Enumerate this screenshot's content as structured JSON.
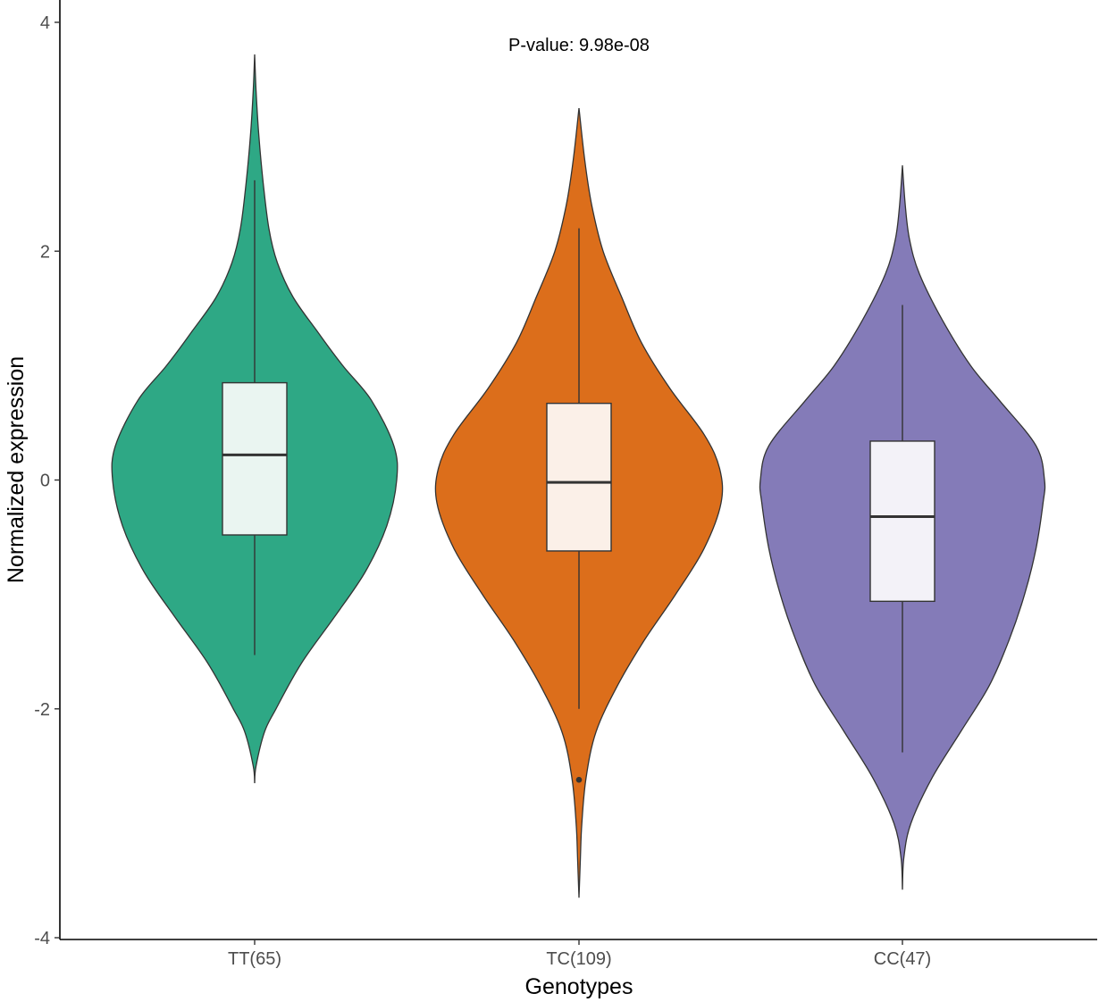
{
  "chart_data": {
    "type": "violin",
    "xlabel": "Genotypes",
    "ylabel": "Normalized expression",
    "annotation": "P-value: 9.98e-08",
    "ylim": [
      -4.05,
      4.2
    ],
    "yticks": [
      -4,
      -2,
      0,
      2,
      4
    ],
    "yticklabels": [
      "-4",
      "-2",
      "0",
      "2",
      "4"
    ],
    "grid": false,
    "legend": "none",
    "categories": [
      "TT(65)",
      "TC(109)",
      "CC(47)"
    ],
    "series": [
      {
        "category": "TT(65)",
        "color": "#2EA885",
        "box_fill": "#EAF5F1",
        "box": {
          "q1": -0.48,
          "median": 0.22,
          "q3": 0.85,
          "whisker_low": -1.53,
          "whisker_high": 2.62
        },
        "outliers": [],
        "violin_range": [
          -2.65,
          3.72
        ],
        "density": [
          [
            -2.65,
            0.0
          ],
          [
            -2.5,
            0.01
          ],
          [
            -2.2,
            0.07
          ],
          [
            -2.0,
            0.15
          ],
          [
            -1.6,
            0.33
          ],
          [
            -1.2,
            0.56
          ],
          [
            -0.8,
            0.78
          ],
          [
            -0.4,
            0.93
          ],
          [
            0.0,
            1.0
          ],
          [
            0.3,
            0.98
          ],
          [
            0.7,
            0.82
          ],
          [
            1.0,
            0.62
          ],
          [
            1.3,
            0.44
          ],
          [
            1.6,
            0.27
          ],
          [
            1.9,
            0.16
          ],
          [
            2.2,
            0.1
          ],
          [
            2.6,
            0.06
          ],
          [
            3.0,
            0.03
          ],
          [
            3.4,
            0.01
          ],
          [
            3.72,
            0.0
          ]
        ]
      },
      {
        "category": "TC(109)",
        "color": "#DC6E1B",
        "box_fill": "#FBF0E8",
        "box": {
          "q1": -0.62,
          "median": -0.02,
          "q3": 0.67,
          "whisker_low": -2.0,
          "whisker_high": 2.2
        },
        "outliers": [
          -2.62
        ],
        "violin_range": [
          -3.65,
          3.25
        ],
        "density": [
          [
            -3.65,
            0.0
          ],
          [
            -3.3,
            0.01
          ],
          [
            -3.0,
            0.02
          ],
          [
            -2.6,
            0.05
          ],
          [
            -2.2,
            0.12
          ],
          [
            -1.8,
            0.27
          ],
          [
            -1.4,
            0.46
          ],
          [
            -1.0,
            0.68
          ],
          [
            -0.6,
            0.88
          ],
          [
            -0.2,
            1.0
          ],
          [
            0.1,
            0.99
          ],
          [
            0.4,
            0.88
          ],
          [
            0.8,
            0.64
          ],
          [
            1.2,
            0.44
          ],
          [
            1.6,
            0.3
          ],
          [
            2.0,
            0.17
          ],
          [
            2.4,
            0.09
          ],
          [
            2.8,
            0.04
          ],
          [
            3.25,
            0.0
          ]
        ]
      },
      {
        "category": "CC(47)",
        "color": "#847BB8",
        "box_fill": "#F3F2F8",
        "box": {
          "q1": -1.06,
          "median": -0.32,
          "q3": 0.34,
          "whisker_low": -2.38,
          "whisker_high": 1.53
        },
        "outliers": [],
        "violin_range": [
          -3.58,
          2.75
        ],
        "density": [
          [
            -3.58,
            0.0
          ],
          [
            -3.3,
            0.01
          ],
          [
            -3.0,
            0.06
          ],
          [
            -2.6,
            0.21
          ],
          [
            -2.2,
            0.41
          ],
          [
            -1.8,
            0.61
          ],
          [
            -1.4,
            0.75
          ],
          [
            -1.0,
            0.86
          ],
          [
            -0.6,
            0.94
          ],
          [
            -0.2,
            0.99
          ],
          [
            0.0,
            1.0
          ],
          [
            0.3,
            0.94
          ],
          [
            0.7,
            0.68
          ],
          [
            1.0,
            0.48
          ],
          [
            1.4,
            0.28
          ],
          [
            1.8,
            0.12
          ],
          [
            2.1,
            0.05
          ],
          [
            2.4,
            0.02
          ],
          [
            2.75,
            0.0
          ]
        ]
      }
    ]
  }
}
